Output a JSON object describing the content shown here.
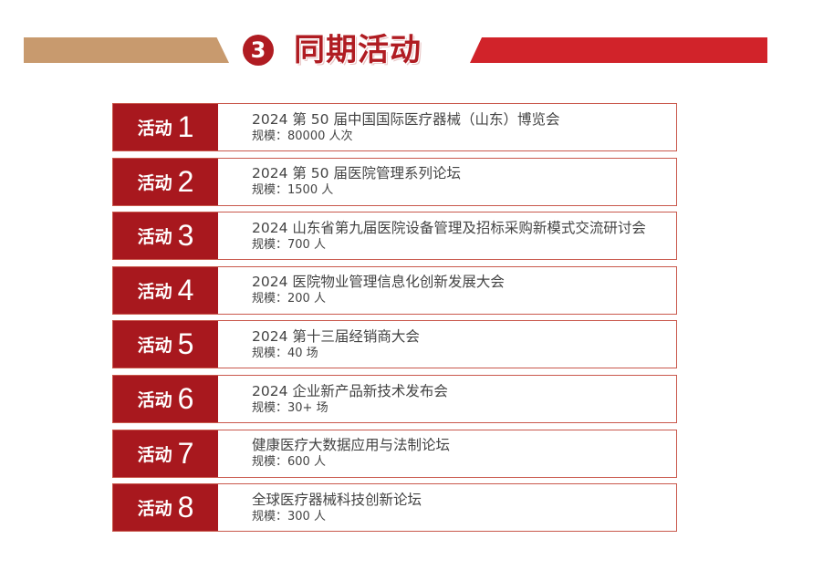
{
  "header": {
    "number": "3",
    "title": "同期活动",
    "colors": {
      "tan": "#c89a6e",
      "red": "#d1232a",
      "dark_red": "#a8181e"
    }
  },
  "activities": [
    {
      "label": "活动",
      "num": "1",
      "name": "2024 第 50 届中国国际医疗器械（山东）博览会",
      "scale": "规模：80000 人次"
    },
    {
      "label": "活动",
      "num": "2",
      "name": "2024 第 50 届医院管理系列论坛",
      "scale": "规模：1500 人"
    },
    {
      "label": "活动",
      "num": "3",
      "name": "2024 山东省第九届医院设备管理及招标采购新模式交流研讨会",
      "scale": "规模：700 人"
    },
    {
      "label": "活动",
      "num": "4",
      "name": "2024 医院物业管理信息化创新发展大会",
      "scale": "规模：200 人"
    },
    {
      "label": "活动",
      "num": "5",
      "name": "2024 第十三届经销商大会",
      "scale": "规模：40 场"
    },
    {
      "label": "活动",
      "num": "6",
      "name": "2024 企业新产品新技术发布会",
      "scale": "规模：30+ 场"
    },
    {
      "label": "活动",
      "num": "7",
      "name": "健康医疗大数据应用与法制论坛",
      "scale": "规模：600 人"
    },
    {
      "label": "活动",
      "num": "8",
      "name": "全球医疗器械科技创新论坛",
      "scale": "规模：300 人"
    }
  ]
}
